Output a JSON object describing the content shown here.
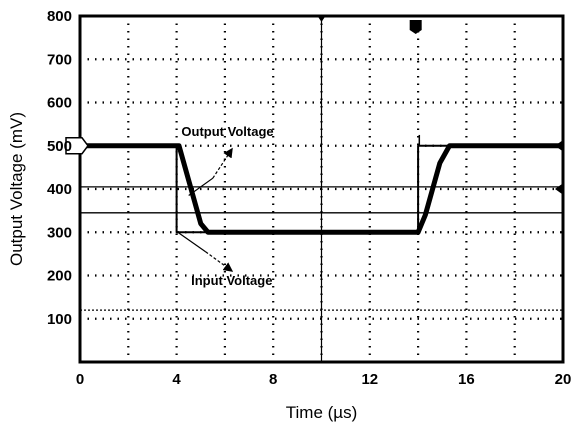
{
  "chart_data": {
    "type": "line",
    "xlabel": "Time (µs)",
    "ylabel": "Output Voltage (mV)",
    "xlim": [
      0,
      20
    ],
    "ylim": [
      0,
      800
    ],
    "x_ticks": [
      0,
      4,
      8,
      12,
      16,
      20
    ],
    "x_tick_labels": [
      "0",
      "4",
      "8",
      "12",
      "16",
      "20"
    ],
    "y_ticks": [
      100,
      200,
      300,
      400,
      500,
      600,
      700,
      800
    ],
    "y_tick_labels": [
      "100",
      "200",
      "300",
      "400",
      "500",
      "600",
      "700",
      "800"
    ],
    "grid": "dotted",
    "series": [
      {
        "name": "Output Voltage",
        "x": [
          0,
          4.1,
          4.5,
          5.0,
          5.3,
          14.0,
          14.3,
          14.9,
          15.3,
          20
        ],
        "y": [
          500,
          500,
          420,
          320,
          300,
          300,
          340,
          460,
          500,
          500
        ]
      },
      {
        "name": "Input Voltage",
        "x": [
          0,
          4.0,
          4.0,
          14.0,
          14.0,
          20
        ],
        "y": [
          500,
          500,
          300,
          300,
          500,
          500
        ]
      }
    ],
    "reference_lines_y": [
      405,
      345,
      120
    ],
    "annotations": [
      {
        "text": "Output Voltage",
        "x": 4.2,
        "y": 522
      },
      {
        "text": "Input Voltage",
        "x": 4.6,
        "y": 178
      }
    ]
  }
}
